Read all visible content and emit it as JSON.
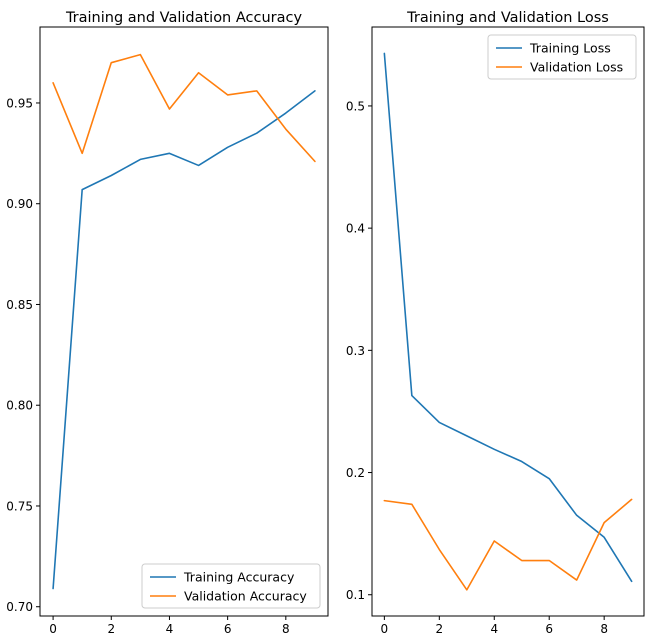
{
  "chart_data": [
    {
      "type": "line",
      "title": "Training and Validation Accuracy",
      "xlabel": "",
      "ylabel": "",
      "x": [
        0,
        1,
        2,
        3,
        4,
        5,
        6,
        7,
        8,
        9
      ],
      "series": [
        {
          "name": "Training Accuracy",
          "color": "#1f77b4",
          "values": [
            0.709,
            0.907,
            0.914,
            0.922,
            0.925,
            0.919,
            0.928,
            0.935,
            0.945,
            0.956
          ]
        },
        {
          "name": "Validation Accuracy",
          "color": "#ff7f0e",
          "values": [
            0.96,
            0.925,
            0.97,
            0.974,
            0.947,
            0.965,
            0.954,
            0.956,
            0.937,
            0.921
          ]
        }
      ],
      "xlim": [
        -0.45,
        9.45
      ],
      "ylim": [
        0.6954,
        0.9877
      ],
      "xticks": [
        0,
        2,
        4,
        6,
        8
      ],
      "yticks": [
        0.7,
        0.75,
        0.8,
        0.85,
        0.9,
        0.95
      ],
      "ytick_format": 2,
      "grid": false,
      "legend": "lower-right"
    },
    {
      "type": "line",
      "title": "Training and Validation Loss",
      "xlabel": "",
      "ylabel": "",
      "x": [
        0,
        1,
        2,
        3,
        4,
        5,
        6,
        7,
        8,
        9
      ],
      "series": [
        {
          "name": "Training Loss",
          "color": "#1f77b4",
          "values": [
            0.543,
            0.263,
            0.241,
            0.23,
            0.219,
            0.209,
            0.195,
            0.165,
            0.147,
            0.111
          ]
        },
        {
          "name": "Validation Loss",
          "color": "#ff7f0e",
          "values": [
            0.177,
            0.174,
            0.137,
            0.104,
            0.144,
            0.128,
            0.128,
            0.112,
            0.159,
            0.178
          ]
        }
      ],
      "xlim": [
        -0.45,
        9.45
      ],
      "ylim": [
        0.0826,
        0.5646
      ],
      "xticks": [
        0,
        2,
        4,
        6,
        8
      ],
      "yticks": [
        0.1,
        0.2,
        0.3,
        0.4,
        0.5
      ],
      "ytick_format": 1,
      "grid": false,
      "legend": "upper-right"
    }
  ]
}
